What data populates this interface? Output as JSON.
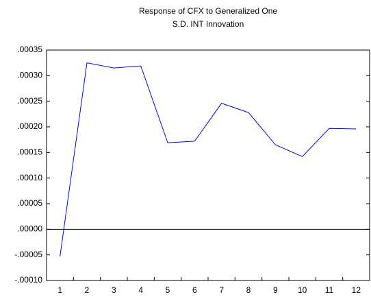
{
  "chart_data": {
    "type": "line",
    "title": [
      "Response of CFX to Generalized One",
      "S.D. INT Innovation"
    ],
    "categories": [
      "1",
      "2",
      "3",
      "4",
      "5",
      "6",
      "7",
      "8",
      "9",
      "10",
      "11",
      "12"
    ],
    "series": [
      {
        "color": "#0000ff",
        "values": [
          -5.3e-05,
          0.000325,
          0.000315,
          0.000319,
          0.000169,
          0.000172,
          0.000246,
          0.000228,
          0.000165,
          0.000142,
          0.000197,
          0.000196
        ]
      }
    ],
    "ylim": [
      -0.0001,
      0.00035
    ],
    "yticks": [
      {
        "value": -0.0001,
        "label": "-.00010"
      },
      {
        "value": -5e-05,
        "label": "-.00005"
      },
      {
        "value": 0,
        "label": ".00000"
      },
      {
        "value": 5e-05,
        "label": ".00005"
      },
      {
        "value": 0.0001,
        "label": ".00010"
      },
      {
        "value": 0.00015,
        "label": ".00015"
      },
      {
        "value": 0.0002,
        "label": ".00020"
      },
      {
        "value": 0.00025,
        "label": ".00025"
      },
      {
        "value": 0.0003,
        "label": ".00030"
      },
      {
        "value": 0.00035,
        "label": ".00035"
      }
    ],
    "zero_line": true
  }
}
